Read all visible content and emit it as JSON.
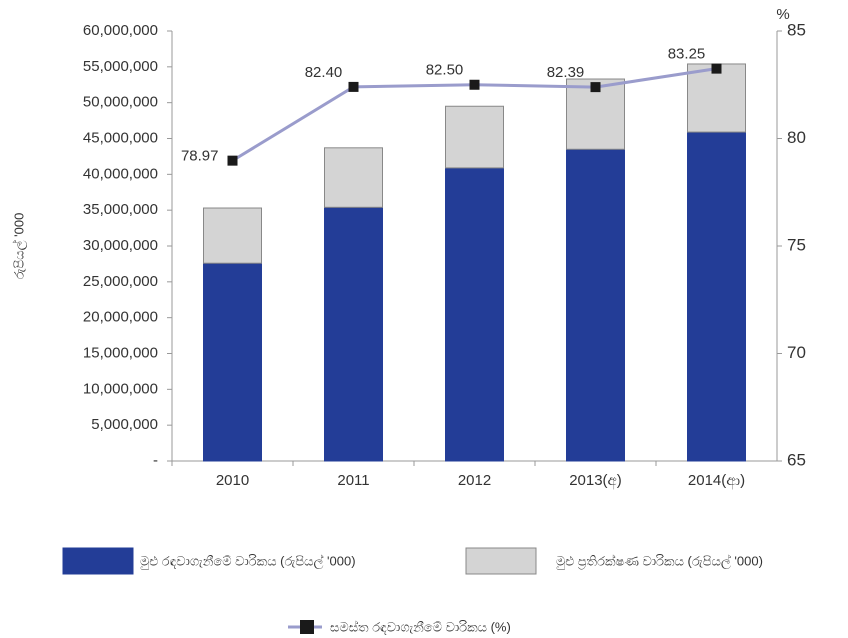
{
  "chart_data": {
    "type": "bar",
    "stacked": true,
    "categories": [
      "2010",
      "2011",
      "2012",
      "2013(අ)",
      "2014(ආ)"
    ],
    "y_label": "රුපියල් '000",
    "y2_label": "%",
    "series": [
      {
        "name": "මුළු රඳවාගැනීමේ වාරිකය (රුපියල් '000)",
        "type": "bar",
        "color": "#233d97",
        "values": [
          27600000,
          35400000,
          40900000,
          43500000,
          45900000
        ]
      },
      {
        "name": "මුළු ප්‍රතිරක්ෂණ වාරිකය (රුපියල් '000)",
        "type": "bar",
        "color": "#d4d4d4",
        "values": [
          7700000,
          8300000,
          8600000,
          9800000,
          9500000
        ]
      },
      {
        "name": "සමස්ත රඳවාගැනීමේ වාරිකය (%)",
        "type": "line",
        "axis": "y2",
        "color": "#9a9ccc",
        "marker_color": "#1a1a1a",
        "values": [
          78.97,
          82.4,
          82.5,
          82.39,
          83.25
        ],
        "value_labels": [
          "78.97",
          "82.40",
          "82.50",
          "82.39",
          "83.25"
        ]
      }
    ],
    "ylim": [
      0,
      60000000
    ],
    "yticks": [
      {
        "value": 0,
        "label": "-"
      },
      {
        "value": 5000000,
        "label": "5,000,000"
      },
      {
        "value": 10000000,
        "label": "10,000,000"
      },
      {
        "value": 15000000,
        "label": "15,000,000"
      },
      {
        "value": 20000000,
        "label": "20,000,000"
      },
      {
        "value": 25000000,
        "label": "25,000,000"
      },
      {
        "value": 30000000,
        "label": "30,000,000"
      },
      {
        "value": 35000000,
        "label": "35,000,000"
      },
      {
        "value": 40000000,
        "label": "40,000,000"
      },
      {
        "value": 45000000,
        "label": "45,000,000"
      },
      {
        "value": 50000000,
        "label": "50,000,000"
      },
      {
        "value": 55000000,
        "label": "55,000,000"
      },
      {
        "value": 60000000,
        "label": "60,000,000"
      }
    ],
    "y2lim": [
      65,
      85
    ],
    "y2ticks": [
      65,
      70,
      75,
      80,
      85
    ],
    "grid": false
  }
}
